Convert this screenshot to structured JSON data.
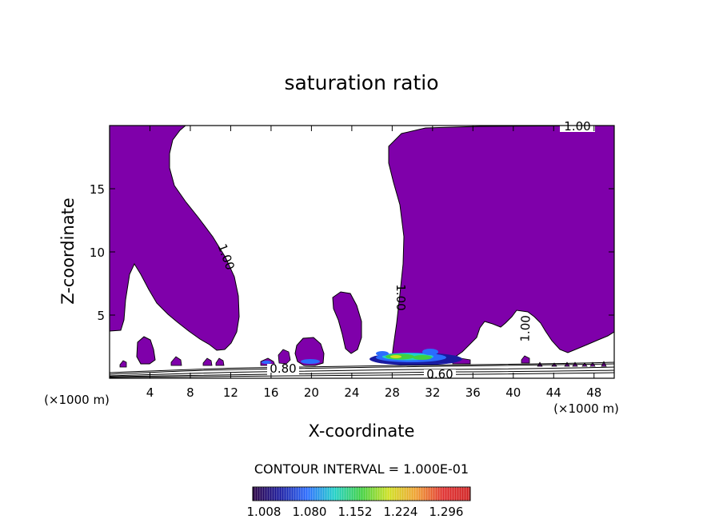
{
  "chart_data": {
    "type": "contour",
    "title": "saturation ratio",
    "xlabel": "X-coordinate",
    "ylabel": "Z-coordinate",
    "x_units_left": "(×1000 m)",
    "x_units_right": "(×1000 m)",
    "xlim": [
      0,
      50
    ],
    "ylim": [
      0,
      20
    ],
    "x_ticks": [
      4,
      8,
      12,
      16,
      20,
      24,
      28,
      32,
      36,
      40,
      44,
      48
    ],
    "y_ticks": [
      5,
      10,
      15
    ],
    "fill_color": "#7f00aa",
    "contour_labels": [
      {
        "text": "1.00",
        "x": 46.0,
        "z": 19.7
      },
      {
        "text": "1.00",
        "x": 11.0,
        "z": 9.5
      },
      {
        "text": "1.00",
        "x": 28.5,
        "z": 6.3
      },
      {
        "text": "1.00",
        "x": 41.0,
        "z": 3.8
      },
      {
        "text": "0.80",
        "x": 17.0,
        "z": 0.6
      },
      {
        "text": "0.60",
        "x": 33.2,
        "z": 0.2
      }
    ],
    "contour_interval_text": "CONTOUR INTERVAL = 1.000E-01",
    "colorbar": {
      "ticks": [
        "1.008",
        "1.080",
        "1.152",
        "1.224",
        "1.296"
      ],
      "colors": [
        "#2a0040",
        "#1a1aa0",
        "#2a6cff",
        "#1fd0c8",
        "#3fd040",
        "#d0e020",
        "#f0a030",
        "#e03030",
        "#d02020"
      ]
    }
  }
}
